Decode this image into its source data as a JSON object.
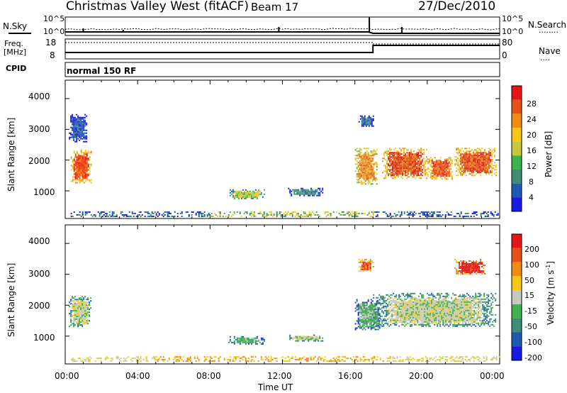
{
  "header": {
    "title": "Christmas Valley West (fitACF)",
    "beam": "Beam 17",
    "date": "27/Dec/2010"
  },
  "top_panels": {
    "nsky_label": "N.Sky",
    "nsearch_label": "N.Search",
    "nsearch_legend": "........",
    "noise_ticks": [
      "10^5",
      "10^0"
    ],
    "freq_label_1": "Freq.",
    "freq_label_2": "[MHz]",
    "freq_ticks": [
      "18",
      "8"
    ],
    "nave_ticks": [
      "80",
      "0"
    ],
    "nave_label": "Nave",
    "nave_legend": "....",
    "cpid_label": "CPID",
    "cpid_text": "normal 150 RF"
  },
  "colors": {
    "power": [
      "#1a1ae6",
      "#1e5ab4",
      "#3c8c78",
      "#3cb44b",
      "#c8c83c",
      "#f5c814",
      "#f08c14",
      "#e65014",
      "#e61414"
    ],
    "velocity": [
      "#1a1ae6",
      "#1e5ab4",
      "#3c8c78",
      "#3cb44b",
      "#c8c8c0",
      "#f5c814",
      "#f08c14",
      "#e65014",
      "#e61414"
    ]
  },
  "chart_data": [
    {
      "type": "heatmap",
      "name": "power",
      "ylabel": "Slant Range [km]",
      "yticks": [
        "4000",
        "3000",
        "2000",
        "1000"
      ],
      "colorbar_label": "Power [dB]",
      "colorbar_ticks": [
        "28",
        "24",
        "20",
        "16",
        "12",
        "8",
        "4"
      ],
      "blobs": [
        {
          "t0": 0.3,
          "t1": 1.4,
          "r0": 1250,
          "r1": 2350,
          "level": 7
        },
        {
          "t0": 0.2,
          "t1": 1.2,
          "r0": 2600,
          "r1": 3500,
          "level": 1
        },
        {
          "t0": 9.0,
          "t1": 11.0,
          "r0": 750,
          "r1": 1050,
          "level": 4
        },
        {
          "t0": 12.3,
          "t1": 14.2,
          "r0": 850,
          "r1": 1100,
          "level": 2
        },
        {
          "t0": 16.0,
          "t1": 17.2,
          "r0": 1200,
          "r1": 2400,
          "level": 6
        },
        {
          "t0": 16.2,
          "t1": 17.0,
          "r0": 3100,
          "r1": 3500,
          "level": 1
        },
        {
          "t0": 17.5,
          "t1": 20.0,
          "r0": 1400,
          "r1": 2400,
          "level": 7
        },
        {
          "t0": 20.0,
          "t1": 21.4,
          "r0": 1400,
          "r1": 2100,
          "level": 7
        },
        {
          "t0": 21.5,
          "t1": 23.8,
          "r0": 1500,
          "r1": 2400,
          "level": 7
        }
      ],
      "ground_band": {
        "t0": 0.3,
        "t1": 24.0,
        "r0": 180,
        "r1": 330
      }
    },
    {
      "type": "heatmap",
      "name": "velocity",
      "ylabel": "Slant Range [km]",
      "yticks": [
        "4000",
        "3000",
        "2000",
        "1000"
      ],
      "xticks": [
        "00:00",
        "04:00",
        "08:00",
        "12:00",
        "16:00",
        "20:00",
        "00:00"
      ],
      "xlabel": "Time UT",
      "colorbar_label": "Velocity [m s",
      "colorbar_label_sup": "-1",
      "colorbar_label_end": "]",
      "colorbar_ticks": [
        "200",
        "100",
        "50",
        "15",
        "-15",
        "-50",
        "-100",
        "-200"
      ],
      "blobs": [
        {
          "t0": 0.2,
          "t1": 1.4,
          "r0": 1300,
          "r1": 2300,
          "level": 4
        },
        {
          "t0": 9.0,
          "t1": 11.0,
          "r0": 750,
          "r1": 1000,
          "level": 3
        },
        {
          "t0": 12.3,
          "t1": 14.2,
          "r0": 850,
          "r1": 1050,
          "level": 4
        },
        {
          "t0": 16.0,
          "t1": 17.4,
          "r0": 1200,
          "r1": 2200,
          "level": 3
        },
        {
          "t0": 17.0,
          "t1": 23.8,
          "r0": 1300,
          "r1": 2400,
          "level": 4
        },
        {
          "t0": 16.2,
          "t1": 17.0,
          "r0": 3100,
          "r1": 3500,
          "level": 7
        },
        {
          "t0": 21.5,
          "t1": 23.2,
          "r0": 3000,
          "r1": 3500,
          "level": 8
        }
      ],
      "ground_band": {
        "t0": 0.3,
        "t1": 24.0,
        "r0": 180,
        "r1": 350
      }
    }
  ]
}
